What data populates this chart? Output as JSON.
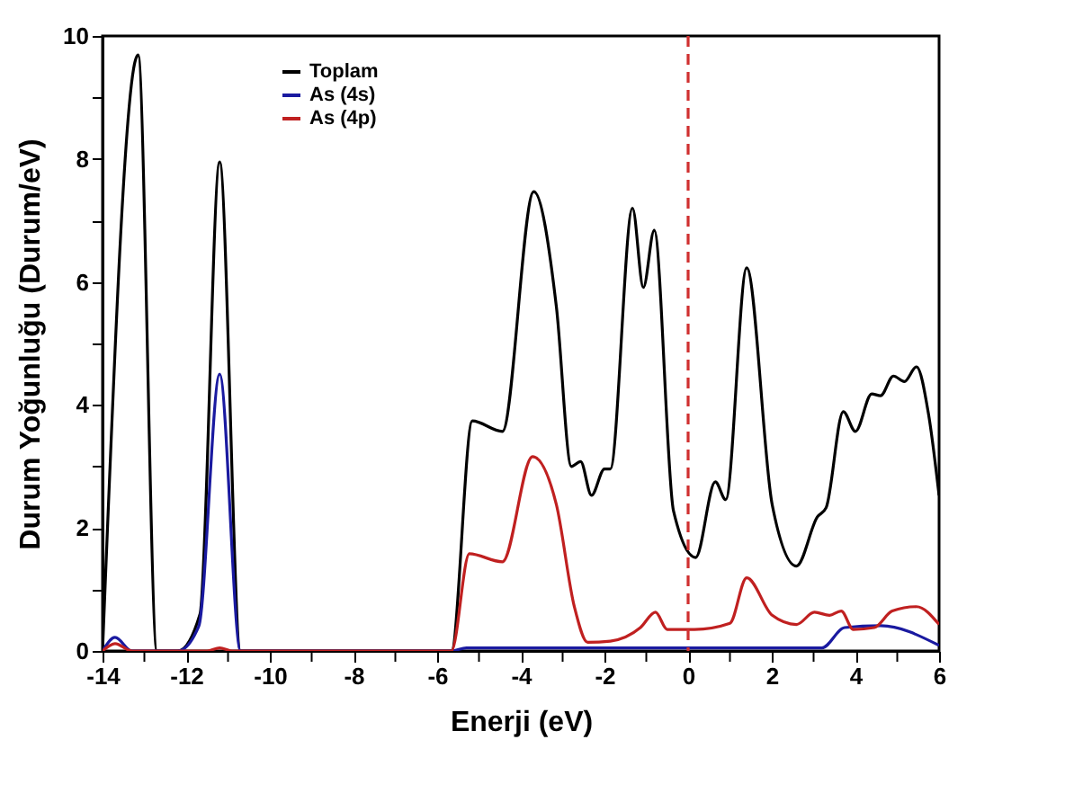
{
  "chart_data": {
    "type": "line",
    "xlabel": "Enerji (eV)",
    "ylabel": "Durum Yoğunluğu (Durum/eV)",
    "xlim": [
      -14,
      6
    ],
    "ylim": [
      0,
      10
    ],
    "xticks": [
      -14,
      {
        "value": -13,
        "label": null
      },
      -12,
      {
        "value": -11,
        "label": null
      },
      -10,
      {
        "value": -9,
        "label": null
      },
      -8,
      {
        "value": -7,
        "label": null
      },
      -6,
      {
        "value": -5,
        "label": null
      },
      -4,
      {
        "value": -3,
        "label": null
      },
      -2,
      {
        "value": -1,
        "label": null
      },
      0,
      {
        "value": 1,
        "label": null
      },
      2,
      {
        "value": 3,
        "label": null
      },
      4,
      {
        "value": 5,
        "label": null
      },
      6
    ],
    "yticks": [
      0,
      {
        "value": 1,
        "label": null
      },
      2,
      {
        "value": 3,
        "label": null
      },
      4,
      {
        "value": 5,
        "label": null
      },
      6,
      {
        "value": 7,
        "label": null
      },
      8,
      {
        "value": 9,
        "label": null
      },
      10
    ],
    "legend": "top left",
    "grid": false,
    "line_style": "solid",
    "ref_lines": [
      {
        "axis": "x",
        "value": 0,
        "color": "#d03030",
        "line_style": "dashed"
      }
    ],
    "series": [
      {
        "name": "Toplam",
        "color": "#000000",
        "x": [
          -14,
          -13.15,
          -12.7,
          -12.2,
          -11.67,
          -11.2,
          -10.7,
          -5.66,
          -5.16,
          -4.44,
          -3.69,
          -3.15,
          -2.79,
          -2.57,
          -2.31,
          -2.0,
          -1.86,
          -1.33,
          -1.07,
          -0.81,
          -0.35,
          0.18,
          0.65,
          0.9,
          1.4,
          2.01,
          2.59,
          3.09,
          3.3,
          3.71,
          4.0,
          4.39,
          4.6,
          4.91,
          5.17,
          5.46,
          5.75,
          6.0
        ],
        "values": [
          0,
          9.69,
          0,
          0,
          0.6,
          7.95,
          0,
          0,
          3.74,
          3.57,
          7.47,
          5.6,
          3.0,
          3.08,
          2.53,
          2.96,
          2.96,
          7.2,
          5.91,
          6.84,
          2.28,
          1.52,
          2.75,
          2.46,
          6.23,
          2.38,
          1.38,
          2.18,
          2.33,
          3.89,
          3.57,
          4.18,
          4.15,
          4.47,
          4.38,
          4.62,
          3.84,
          2.53
        ]
      },
      {
        "name": "As (4s)",
        "color": "#1a1aa0",
        "x": [
          -14,
          -13.7,
          -13.3,
          -12.2,
          -11.7,
          -11.2,
          -10.7,
          -5.66,
          -5.3,
          3.2,
          3.74,
          4.6,
          6.0
        ],
        "values": [
          0,
          0.22,
          0,
          0,
          0.4,
          4.5,
          0,
          0,
          0.05,
          0.05,
          0.38,
          0.41,
          0.09
        ]
      },
      {
        "name": "As (4p)",
        "color": "#c02020",
        "x": [
          -14,
          -13.7,
          -13.3,
          -11.5,
          -11.2,
          -10.9,
          -5.66,
          -5.23,
          -4.44,
          -3.72,
          -3.15,
          -2.72,
          -2.4,
          -1.86,
          -1.14,
          -0.78,
          -0.5,
          0.15,
          1.0,
          1.4,
          2.01,
          2.59,
          3.02,
          3.38,
          3.66,
          3.95,
          4.45,
          4.88,
          5.46,
          6.0
        ],
        "values": [
          0,
          0.12,
          0,
          0,
          0.05,
          0,
          0,
          1.58,
          1.45,
          3.16,
          2.38,
          0.72,
          0.14,
          0.16,
          0.38,
          0.63,
          0.35,
          0.35,
          0.45,
          1.19,
          0.58,
          0.43,
          0.63,
          0.58,
          0.65,
          0.35,
          0.38,
          0.65,
          0.72,
          0.43
        ]
      }
    ]
  }
}
